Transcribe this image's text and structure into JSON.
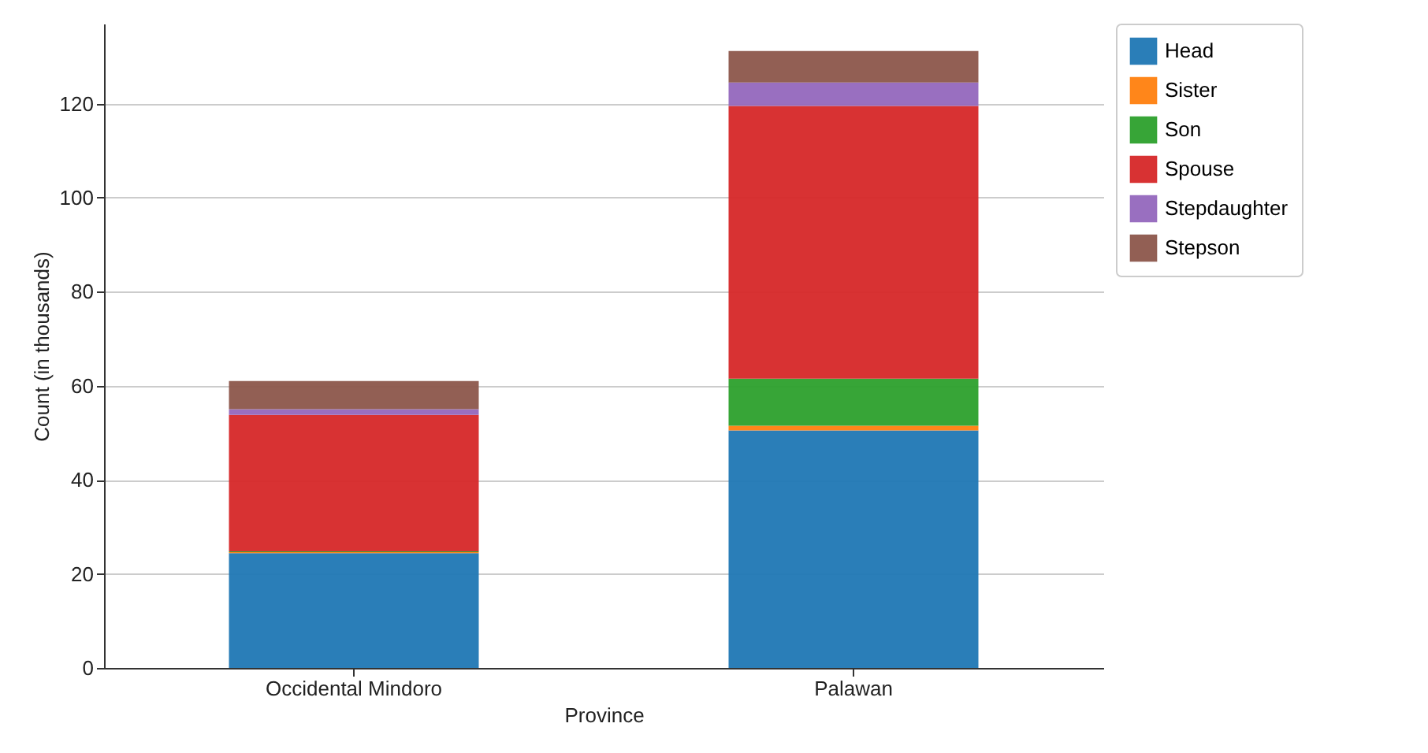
{
  "chart_data": {
    "type": "bar",
    "xlabel": "Province",
    "ylabel": "Count (in thousands)",
    "categories": [
      "Occidental Mindoro",
      "Palawan"
    ],
    "series": [
      {
        "name": "Head",
        "color": "#1f77b4",
        "values": [
          24.4,
          50.5
        ]
      },
      {
        "name": "Sister",
        "color": "#ff7f0e",
        "values": [
          0.2,
          1
        ]
      },
      {
        "name": "Son",
        "color": "#2ca02c",
        "values": [
          0.2,
          10
        ]
      },
      {
        "name": "Spouse",
        "color": "#d62728",
        "values": [
          29,
          58
        ]
      },
      {
        "name": "Stepdaughter",
        "color": "#9467bd",
        "values": [
          1.2,
          5
        ]
      },
      {
        "name": "Stepson",
        "color": "#8c564b",
        "values": [
          6,
          6.7
        ]
      }
    ],
    "stacked": true,
    "ylim": [
      0,
      137
    ],
    "yticks": [
      0,
      20,
      40,
      60,
      80,
      100,
      120
    ],
    "grid": "y",
    "legend": "top right"
  }
}
